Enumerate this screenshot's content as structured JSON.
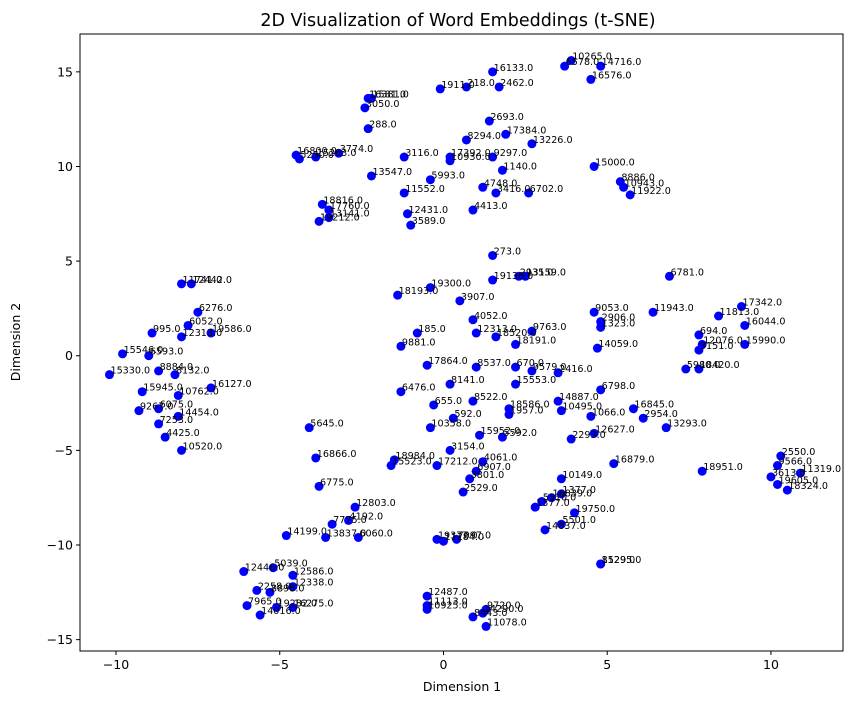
{
  "chart_data": {
    "type": "scatter",
    "title": "2D Visualization of Word Embeddings (t-SNE)",
    "xlabel": "Dimension 1",
    "ylabel": "Dimension 2",
    "xlim": [
      -11.1,
      12.2
    ],
    "ylim": [
      -15.6,
      17.0
    ],
    "xticks": [
      -10,
      -5,
      0,
      5,
      10
    ],
    "yticks": [
      -15,
      -10,
      -5,
      0,
      5,
      10,
      15
    ],
    "grid": false,
    "legend": "none",
    "marker_color": "#0000ff",
    "points": [
      {
        "x": 3.9,
        "y": 15.6,
        "label": "10265.0"
      },
      {
        "x": 3.7,
        "y": 15.3,
        "label": "6578.0"
      },
      {
        "x": 4.8,
        "y": 15.3,
        "label": "14716.0"
      },
      {
        "x": 1.5,
        "y": 15.0,
        "label": "16133.0"
      },
      {
        "x": 4.5,
        "y": 14.6,
        "label": "16576.0"
      },
      {
        "x": 1.7,
        "y": 14.2,
        "label": "2462.0"
      },
      {
        "x": 0.7,
        "y": 14.2,
        "label": "218.0"
      },
      {
        "x": -0.1,
        "y": 14.1,
        "label": "1911.0"
      },
      {
        "x": -2.2,
        "y": 13.6,
        "label": "1581.0"
      },
      {
        "x": -2.3,
        "y": 13.6,
        "label": "16381.0"
      },
      {
        "x": -2.4,
        "y": 13.1,
        "label": "3050.0"
      },
      {
        "x": 1.4,
        "y": 12.4,
        "label": "2693.0"
      },
      {
        "x": -2.3,
        "y": 12.0,
        "label": "288.0"
      },
      {
        "x": 1.9,
        "y": 11.7,
        "label": "17384.0"
      },
      {
        "x": 0.7,
        "y": 11.4,
        "label": "8294.0"
      },
      {
        "x": 2.7,
        "y": 11.2,
        "label": "13226.0"
      },
      {
        "x": -3.2,
        "y": 10.7,
        "label": "3774.0"
      },
      {
        "x": -4.5,
        "y": 10.6,
        "label": "16800.0"
      },
      {
        "x": -3.9,
        "y": 10.5,
        "label": "15263.0"
      },
      {
        "x": -1.2,
        "y": 10.5,
        "label": "3116.0"
      },
      {
        "x": -4.4,
        "y": 10.4,
        "label": "5250.0"
      },
      {
        "x": 0.2,
        "y": 10.5,
        "label": "17392.0"
      },
      {
        "x": 0.2,
        "y": 10.3,
        "label": "10930.0"
      },
      {
        "x": 1.5,
        "y": 10.5,
        "label": "9297.0"
      },
      {
        "x": 4.6,
        "y": 10.0,
        "label": "15000.0"
      },
      {
        "x": 1.8,
        "y": 9.8,
        "label": "1140.0"
      },
      {
        "x": 5.4,
        "y": 9.2,
        "label": "8886.0"
      },
      {
        "x": -2.2,
        "y": 9.5,
        "label": "13547.0"
      },
      {
        "x": -0.4,
        "y": 9.3,
        "label": "5993.0"
      },
      {
        "x": 1.2,
        "y": 8.9,
        "label": "4748.0"
      },
      {
        "x": 5.5,
        "y": 8.9,
        "label": "10943.0"
      },
      {
        "x": 2.6,
        "y": 8.6,
        "label": "6702.0"
      },
      {
        "x": 1.6,
        "y": 8.6,
        "label": "3416.0"
      },
      {
        "x": -1.2,
        "y": 8.6,
        "label": "11552.0"
      },
      {
        "x": 5.7,
        "y": 8.5,
        "label": "11922.0"
      },
      {
        "x": -3.7,
        "y": 8.0,
        "label": "18816.0"
      },
      {
        "x": -3.5,
        "y": 7.7,
        "label": "17760.0"
      },
      {
        "x": 0.9,
        "y": 7.7,
        "label": "4413.0"
      },
      {
        "x": -1.1,
        "y": 7.5,
        "label": "12431.0"
      },
      {
        "x": -3.5,
        "y": 7.3,
        "label": "13141.0"
      },
      {
        "x": -3.8,
        "y": 7.1,
        "label": "19212.0"
      },
      {
        "x": -1.0,
        "y": 6.9,
        "label": "3589.0"
      },
      {
        "x": 1.5,
        "y": 5.3,
        "label": "273.0"
      },
      {
        "x": 6.9,
        "y": 4.2,
        "label": "6781.0"
      },
      {
        "x": 2.3,
        "y": 4.2,
        "label": "2935.0"
      },
      {
        "x": 2.5,
        "y": 4.2,
        "label": "13159.0"
      },
      {
        "x": 1.5,
        "y": 4.0,
        "label": "19136.0"
      },
      {
        "x": -8.0,
        "y": 3.8,
        "label": "11741.0"
      },
      {
        "x": -7.7,
        "y": 3.8,
        "label": "12442.0"
      },
      {
        "x": -0.4,
        "y": 3.6,
        "label": "19300.0"
      },
      {
        "x": -1.4,
        "y": 3.2,
        "label": "18193.0"
      },
      {
        "x": 0.5,
        "y": 2.9,
        "label": "3907.0"
      },
      {
        "x": 9.1,
        "y": 2.6,
        "label": "17342.0"
      },
      {
        "x": 6.4,
        "y": 2.3,
        "label": "11943.0"
      },
      {
        "x": -7.5,
        "y": 2.3,
        "label": "6276.0"
      },
      {
        "x": 4.6,
        "y": 2.3,
        "label": "9053.0"
      },
      {
        "x": 8.4,
        "y": 2.1,
        "label": "11813.0"
      },
      {
        "x": 0.9,
        "y": 1.9,
        "label": "4052.0"
      },
      {
        "x": 4.8,
        "y": 1.8,
        "label": "2906.0"
      },
      {
        "x": -7.8,
        "y": 1.6,
        "label": "6052.0"
      },
      {
        "x": 9.2,
        "y": 1.6,
        "label": "16044.0"
      },
      {
        "x": 4.8,
        "y": 1.5,
        "label": "1323.0"
      },
      {
        "x": 2.7,
        "y": 1.3,
        "label": "9763.0"
      },
      {
        "x": -7.1,
        "y": 1.2,
        "label": "19586.0"
      },
      {
        "x": -8.9,
        "y": 1.2,
        "label": "995.0"
      },
      {
        "x": 1.0,
        "y": 1.2,
        "label": "12313.0"
      },
      {
        "x": -0.8,
        "y": 1.2,
        "label": "185.0"
      },
      {
        "x": 7.8,
        "y": 1.1,
        "label": "694.0"
      },
      {
        "x": 1.6,
        "y": 1.0,
        "label": "18520.0"
      },
      {
        "x": -8.0,
        "y": 1.0,
        "label": "12313.0"
      },
      {
        "x": 7.9,
        "y": 0.6,
        "label": "12076.0"
      },
      {
        "x": 9.2,
        "y": 0.6,
        "label": "15990.0"
      },
      {
        "x": 2.2,
        "y": 0.6,
        "label": "18191.0"
      },
      {
        "x": -1.3,
        "y": 0.5,
        "label": "9881.0"
      },
      {
        "x": 4.7,
        "y": 0.4,
        "label": "14059.0"
      },
      {
        "x": 7.8,
        "y": 0.3,
        "label": "3151.0"
      },
      {
        "x": -9.8,
        "y": 0.1,
        "label": "15546.0"
      },
      {
        "x": -9.0,
        "y": 0.0,
        "label": "6593.0"
      },
      {
        "x": -0.5,
        "y": -0.5,
        "label": "17864.0"
      },
      {
        "x": 7.4,
        "y": -0.7,
        "label": "5980.0"
      },
      {
        "x": 7.8,
        "y": -0.7,
        "label": "18420.0"
      },
      {
        "x": 1.0,
        "y": -0.6,
        "label": "8537.0"
      },
      {
        "x": 2.2,
        "y": -0.6,
        "label": "670.0"
      },
      {
        "x": 2.7,
        "y": -0.8,
        "label": "9579.0"
      },
      {
        "x": 3.5,
        "y": -0.9,
        "label": "2416.0"
      },
      {
        "x": -8.7,
        "y": -0.8,
        "label": "8884.0"
      },
      {
        "x": -8.2,
        "y": -1.0,
        "label": "8132.0"
      },
      {
        "x": -10.2,
        "y": -1.0,
        "label": "15330.0"
      },
      {
        "x": 0.2,
        "y": -1.5,
        "label": "8141.0"
      },
      {
        "x": 2.2,
        "y": -1.5,
        "label": "15553.0"
      },
      {
        "x": -1.3,
        "y": -1.9,
        "label": "6476.0"
      },
      {
        "x": -7.1,
        "y": -1.7,
        "label": "16127.0"
      },
      {
        "x": -9.2,
        "y": -1.9,
        "label": "15945.0"
      },
      {
        "x": 4.8,
        "y": -1.8,
        "label": "6798.0"
      },
      {
        "x": -8.1,
        "y": -2.1,
        "label": "10762.0"
      },
      {
        "x": 0.9,
        "y": -2.4,
        "label": "8522.0"
      },
      {
        "x": 3.5,
        "y": -2.4,
        "label": "14887.0"
      },
      {
        "x": -0.3,
        "y": -2.6,
        "label": "655.0"
      },
      {
        "x": 2.0,
        "y": -2.8,
        "label": "18586.0"
      },
      {
        "x": 3.6,
        "y": -2.9,
        "label": "10495.0"
      },
      {
        "x": -8.7,
        "y": -2.8,
        "label": "6075.0"
      },
      {
        "x": -9.3,
        "y": -2.9,
        "label": "9267.0"
      },
      {
        "x": 5.8,
        "y": -2.8,
        "label": "16845.0"
      },
      {
        "x": 2.0,
        "y": -3.1,
        "label": "1957.0"
      },
      {
        "x": 4.5,
        "y": -3.2,
        "label": "1066.0"
      },
      {
        "x": 6.1,
        "y": -3.3,
        "label": "2954.0"
      },
      {
        "x": 0.3,
        "y": -3.3,
        "label": "592.0"
      },
      {
        "x": -8.1,
        "y": -3.2,
        "label": "14454.0"
      },
      {
        "x": -8.7,
        "y": -3.6,
        "label": "7253.0"
      },
      {
        "x": -4.1,
        "y": -3.8,
        "label": "5645.0"
      },
      {
        "x": -0.4,
        "y": -3.8,
        "label": "10358.0"
      },
      {
        "x": 6.8,
        "y": -3.8,
        "label": "13293.0"
      },
      {
        "x": 4.6,
        "y": -4.1,
        "label": "12627.0"
      },
      {
        "x": 1.1,
        "y": -4.2,
        "label": "15952.0"
      },
      {
        "x": 1.8,
        "y": -4.3,
        "label": "5592.0"
      },
      {
        "x": -8.5,
        "y": -4.3,
        "label": "4425.0"
      },
      {
        "x": 3.9,
        "y": -4.4,
        "label": "2293.0"
      },
      {
        "x": 0.2,
        "y": -5.0,
        "label": "3154.0"
      },
      {
        "x": -8.0,
        "y": -5.0,
        "label": "10520.0"
      },
      {
        "x": -3.9,
        "y": -5.4,
        "label": "16866.0"
      },
      {
        "x": -1.5,
        "y": -5.5,
        "label": "18984.0"
      },
      {
        "x": 1.2,
        "y": -5.6,
        "label": "4061.0"
      },
      {
        "x": 5.2,
        "y": -5.7,
        "label": "16879.0"
      },
      {
        "x": -1.6,
        "y": -5.8,
        "label": "15523.0"
      },
      {
        "x": -0.2,
        "y": -5.8,
        "label": "17212.0"
      },
      {
        "x": 10.3,
        "y": -5.3,
        "label": "2550.0"
      },
      {
        "x": 10.2,
        "y": -5.8,
        "label": "9566.0"
      },
      {
        "x": 1.0,
        "y": -6.1,
        "label": "6907.0"
      },
      {
        "x": 7.9,
        "y": -6.1,
        "label": "18951.0"
      },
      {
        "x": 10.9,
        "y": -6.2,
        "label": "11319.0"
      },
      {
        "x": 3.6,
        "y": -6.5,
        "label": "10149.0"
      },
      {
        "x": 0.8,
        "y": -6.5,
        "label": "3801.0"
      },
      {
        "x": 10.0,
        "y": -6.4,
        "label": "3613.0"
      },
      {
        "x": 10.2,
        "y": -6.8,
        "label": "19605.0"
      },
      {
        "x": 10.5,
        "y": -7.1,
        "label": "18324.0"
      },
      {
        "x": -3.8,
        "y": -6.9,
        "label": "6775.0"
      },
      {
        "x": 0.6,
        "y": -7.2,
        "label": "2529.0"
      },
      {
        "x": 3.6,
        "y": -7.3,
        "label": "1377.0"
      },
      {
        "x": 3.3,
        "y": -7.5,
        "label": "16839.0"
      },
      {
        "x": 3.0,
        "y": -7.7,
        "label": "5510.0"
      },
      {
        "x": 2.8,
        "y": -8.0,
        "label": "1377.0"
      },
      {
        "x": -2.7,
        "y": -8.0,
        "label": "12803.0"
      },
      {
        "x": 4.0,
        "y": -8.3,
        "label": "19750.0"
      },
      {
        "x": -2.9,
        "y": -8.7,
        "label": "4192.0"
      },
      {
        "x": 3.6,
        "y": -8.9,
        "label": "5501.0"
      },
      {
        "x": -3.4,
        "y": -8.9,
        "label": "7775.0"
      },
      {
        "x": 3.1,
        "y": -9.2,
        "label": "14837.0"
      },
      {
        "x": -4.8,
        "y": -9.5,
        "label": "14199.0"
      },
      {
        "x": -3.6,
        "y": -9.6,
        "label": "13837.0"
      },
      {
        "x": -2.6,
        "y": -9.6,
        "label": "6060.0"
      },
      {
        "x": -0.2,
        "y": -9.7,
        "label": "19377.0"
      },
      {
        "x": 0.0,
        "y": -9.8,
        "label": "11184.0"
      },
      {
        "x": 0.4,
        "y": -9.7,
        "label": "7097.0"
      },
      {
        "x": -5.2,
        "y": -11.2,
        "label": "5039.0"
      },
      {
        "x": 4.8,
        "y": -11.0,
        "label": "15295.0"
      },
      {
        "x": 4.8,
        "y": -11.0,
        "label": "8129.0"
      },
      {
        "x": -6.1,
        "y": -11.4,
        "label": "12446.0"
      },
      {
        "x": -4.6,
        "y": -11.6,
        "label": "12586.0"
      },
      {
        "x": -4.6,
        "y": -12.2,
        "label": "12338.0"
      },
      {
        "x": -5.7,
        "y": -12.4,
        "label": "2258.0"
      },
      {
        "x": -5.3,
        "y": -12.5,
        "label": "8898.0"
      },
      {
        "x": -0.5,
        "y": -12.7,
        "label": "12487.0"
      },
      {
        "x": -0.5,
        "y": -13.2,
        "label": "11113.0"
      },
      {
        "x": -6.0,
        "y": -13.2,
        "label": "7965.0"
      },
      {
        "x": -5.1,
        "y": -13.3,
        "label": "19282.0"
      },
      {
        "x": -4.6,
        "y": -13.3,
        "label": "16275.0"
      },
      {
        "x": -0.5,
        "y": -13.4,
        "label": "10925.0"
      },
      {
        "x": 1.3,
        "y": -13.4,
        "label": "9720.0"
      },
      {
        "x": 1.2,
        "y": -13.6,
        "label": "14290.0"
      },
      {
        "x": -5.6,
        "y": -13.7,
        "label": "14016.0"
      },
      {
        "x": 0.9,
        "y": -13.8,
        "label": "8443.0"
      },
      {
        "x": 1.3,
        "y": -14.3,
        "label": "11078.0"
      }
    ]
  }
}
